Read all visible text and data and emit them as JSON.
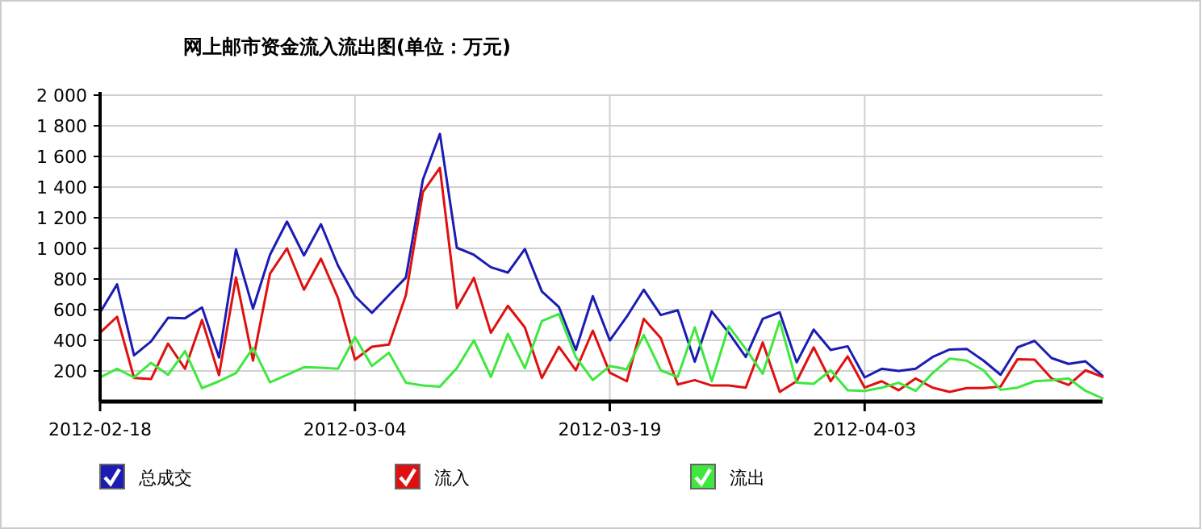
{
  "chart_data": {
    "type": "line",
    "title": "网上邮市资金流入流出图(单位：万元)",
    "x": [
      "2012-02-18",
      "2012-02-19",
      "2012-02-20",
      "2012-02-21",
      "2012-02-22",
      "2012-02-23",
      "2012-02-24",
      "2012-02-25",
      "2012-02-26",
      "2012-02-27",
      "2012-02-28",
      "2012-02-29",
      "2012-03-01",
      "2012-03-02",
      "2012-03-03",
      "2012-03-04",
      "2012-03-05",
      "2012-03-06",
      "2012-03-07",
      "2012-03-08",
      "2012-03-09",
      "2012-03-10",
      "2012-03-11",
      "2012-03-12",
      "2012-03-13",
      "2012-03-14",
      "2012-03-15",
      "2012-03-16",
      "2012-03-17",
      "2012-03-18",
      "2012-03-19",
      "2012-03-20",
      "2012-03-21",
      "2012-03-22",
      "2012-03-23",
      "2012-03-24",
      "2012-03-25",
      "2012-03-26",
      "2012-03-27",
      "2012-03-28",
      "2012-03-29",
      "2012-03-30",
      "2012-03-31",
      "2012-04-01",
      "2012-04-02",
      "2012-04-03",
      "2012-04-04",
      "2012-04-05",
      "2012-04-06",
      "2012-04-07",
      "2012-04-08",
      "2012-04-09",
      "2012-04-10",
      "2012-04-11",
      "2012-04-12",
      "2012-04-13",
      "2012-04-14",
      "2012-04-15",
      "2012-04-16",
      "2012-04-17"
    ],
    "series": [
      {
        "name": "总成交",
        "color": "#1c1cb4",
        "values": [
          582,
          765,
          302,
          393,
          547,
          544,
          614,
          288,
          993,
          607,
          958,
          1175,
          954,
          1158,
          888,
          688,
          579,
          695,
          810,
          1449,
          1747,
          1004,
          958,
          877,
          842,
          996,
          719,
          618,
          337,
          688,
          400,
          554,
          730,
          565,
          596,
          260,
          589,
          449,
          291,
          540,
          582,
          256,
          470,
          337,
          361,
          158,
          214,
          200,
          214,
          291,
          340,
          344,
          267,
          175,
          354,
          396,
          284,
          246,
          263,
          168
        ]
      },
      {
        "name": "流入",
        "color": "#e01010",
        "values": [
          449,
          554,
          154,
          147,
          379,
          214,
          533,
          172,
          810,
          267,
          835,
          1000,
          730,
          933,
          677,
          274,
          358,
          372,
          695,
          1368,
          1526,
          611,
          807,
          449,
          625,
          484,
          154,
          358,
          204,
          463,
          189,
          133,
          540,
          414,
          112,
          140,
          105,
          105,
          91,
          386,
          63,
          133,
          354,
          133,
          295,
          91,
          133,
          74,
          151,
          91,
          63,
          88,
          88,
          98,
          277,
          274,
          151,
          109,
          204,
          161
        ]
      },
      {
        "name": "流出",
        "color": "#3ee83e",
        "values": [
          158,
          214,
          158,
          253,
          175,
          330,
          88,
          133,
          186,
          351,
          126,
          175,
          225,
          221,
          214,
          421,
          232,
          319,
          123,
          105,
          98,
          218,
          400,
          161,
          442,
          218,
          526,
          572,
          291,
          140,
          232,
          211,
          435,
          204,
          161,
          484,
          133,
          491,
          344,
          182,
          526,
          123,
          116,
          204,
          74,
          70,
          91,
          123,
          70,
          186,
          281,
          267,
          204,
          77,
          91,
          133,
          140,
          151,
          70,
          21
        ]
      }
    ],
    "xlim": [
      "2012-02-18",
      "2012-04-17"
    ],
    "xticks": [
      "2012-02-18",
      "2012-03-04",
      "2012-03-19",
      "2012-04-03"
    ],
    "ylim": [
      0,
      2000
    ],
    "yticks": [
      200,
      400,
      600,
      800,
      {
        "value": 1000,
        "label": "1 000"
      },
      {
        "value": 1200,
        "label": "1 200"
      },
      {
        "value": 1400,
        "label": "1 400"
      },
      {
        "value": 1600,
        "label": "1 600"
      },
      {
        "value": 1800,
        "label": "1 800"
      },
      {
        "value": 2000,
        "label": "2 000"
      }
    ],
    "grid": true,
    "legend": "bottom"
  }
}
